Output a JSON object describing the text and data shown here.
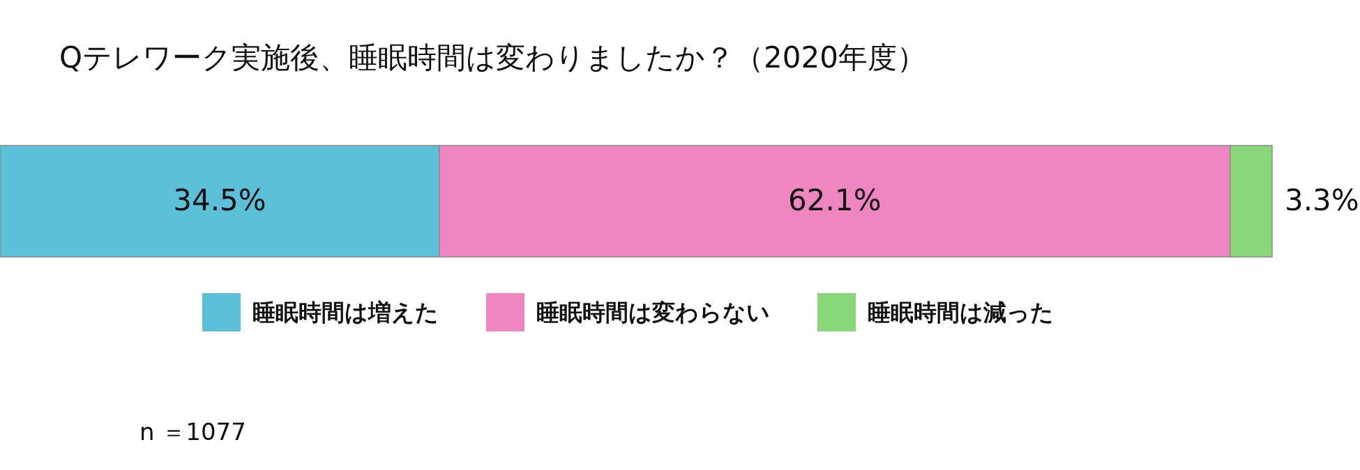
{
  "chart_data": {
    "type": "bar",
    "orientation": "horizontal",
    "stacked": true,
    "title": "Qテレワーク実施後、睡眠時間は変わりましたか？（2020年度）",
    "categories": [
      null
    ],
    "series": [
      {
        "name": "睡眠時間は増えた",
        "color": "#5bc0d8",
        "values": [
          34.5
        ],
        "value_labels": [
          "34.5%"
        ]
      },
      {
        "name": "睡眠時間は変わらない",
        "color": "#ef85c1",
        "values": [
          62.1
        ],
        "value_labels": [
          "62.1%"
        ]
      },
      {
        "name": "睡眠時間は減った",
        "color": "#88d87a",
        "values": [
          3.3
        ],
        "value_labels": [
          "3.3%"
        ]
      }
    ],
    "legend": "bottom",
    "annotations": [
      "n ＝1077"
    ]
  }
}
